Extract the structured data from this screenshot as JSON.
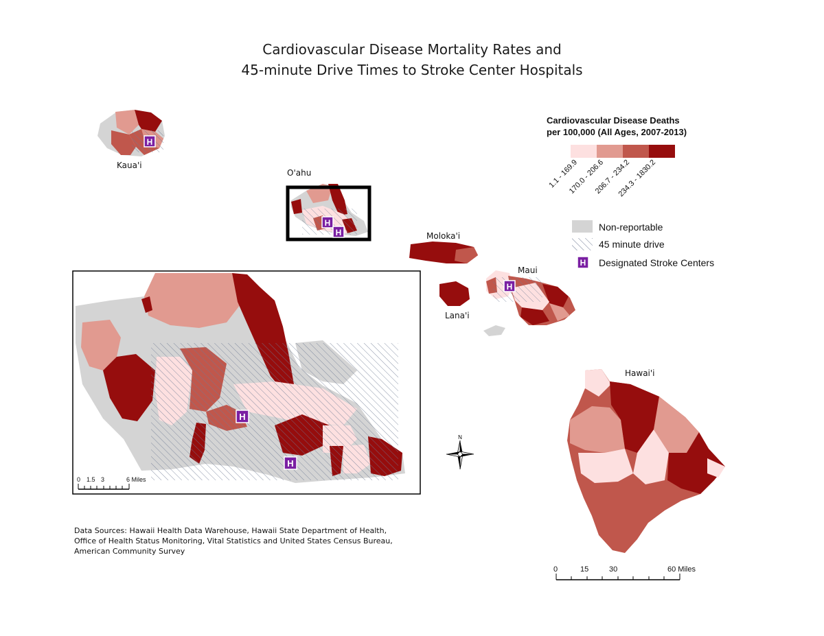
{
  "title": {
    "line1": "Cardiovascular Disease Mortality Rates and",
    "line2": "45-minute Drive Times to Stroke Center Hospitals"
  },
  "islands": {
    "kauai": "Kaua'i",
    "oahu": "O'ahu",
    "molokai": "Moloka'i",
    "maui": "Maui",
    "lanai": "Lana'i",
    "hawaii": "Hawai'i"
  },
  "legend": {
    "title_line1": "Cardiovascular Disease Deaths",
    "title_line2": "per 100,000 (All Ages, 2007-2013)",
    "classes": [
      {
        "label": "1.1 - 169.9",
        "color": "#fde0e0"
      },
      {
        "label": "170.0 - 206.6",
        "color": "#e19a90"
      },
      {
        "label": "206.7 - 234.2",
        "color": "#c0574c"
      },
      {
        "label": "234.3 - 1830.2",
        "color": "#960d0d"
      }
    ],
    "non_reportable": {
      "label": "Non-reportable",
      "color": "#d4d4d4"
    },
    "drive": {
      "label": "45 minute drive"
    },
    "stroke": {
      "label": "Designated Stroke Centers",
      "color": "#7a1fa2",
      "glyph": "H"
    }
  },
  "north_arrow": "N",
  "inset_scale": {
    "ticks": [
      "0",
      "1.5",
      "3",
      "6 Miles"
    ]
  },
  "main_scale": {
    "ticks": [
      "0",
      "15",
      "30",
      "60 Miles"
    ]
  },
  "sources": {
    "line1": "Data Sources: Hawaii Health Data Warehouse, Hawaii State Department of Health,",
    "line2": "Office of Health Status Monitoring, Vital Statistics and United States Census Bureau,",
    "line3": "American Community Survey"
  }
}
